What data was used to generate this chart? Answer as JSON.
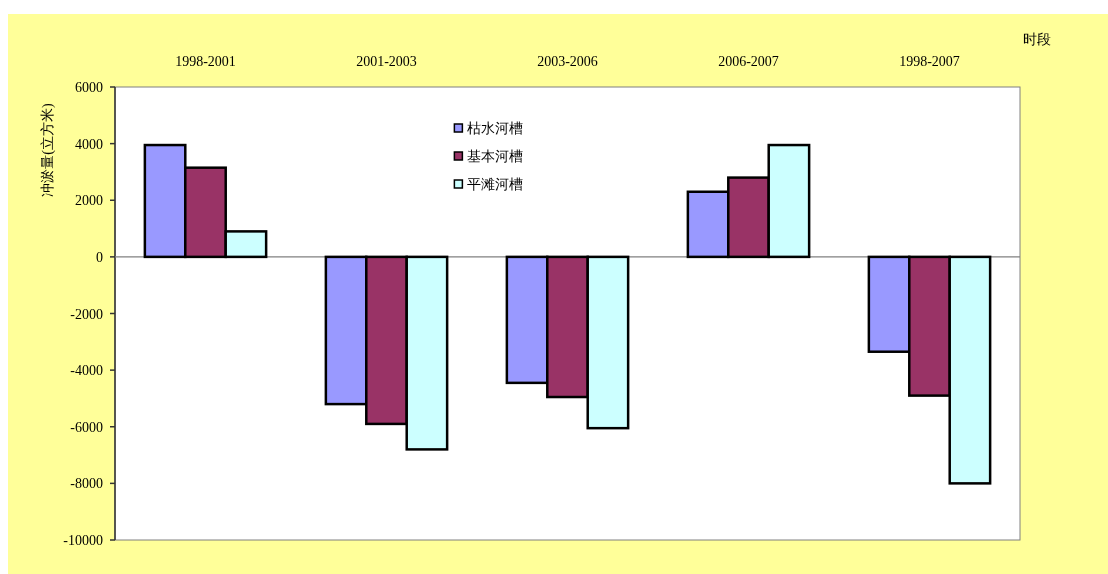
{
  "chart_data": {
    "type": "bar",
    "xlabel": "时段",
    "ylabel": "冲淤量(立方米)",
    "categories": [
      "1998-2001",
      "2001-2003",
      "2003-2006",
      "2006-2007",
      "1998-2007"
    ],
    "series": [
      {
        "name": "枯水河槽",
        "color": "#9999ff",
        "values": [
          3950,
          -5200,
          -4450,
          2300,
          -3350
        ]
      },
      {
        "name": "基本河槽",
        "color": "#993366",
        "values": [
          3150,
          -5900,
          -4950,
          2800,
          -4900
        ]
      },
      {
        "name": "平滩河槽",
        "color": "#ccffff",
        "values": [
          900,
          -6800,
          -6050,
          3950,
          -8000
        ]
      }
    ],
    "ylim": [
      -10000,
      6000
    ],
    "yticks": [
      -10000,
      -8000,
      -6000,
      -4000,
      -2000,
      0,
      2000,
      4000,
      6000
    ],
    "legend": "top"
  }
}
